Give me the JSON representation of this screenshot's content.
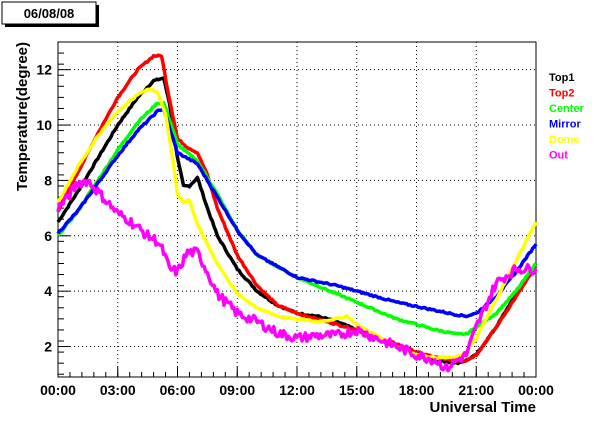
{
  "chart_data": {
    "type": "line",
    "title": "06/08/08",
    "xlabel": "Universal Time",
    "ylabel": "Temperature(degree)",
    "xlim": [
      0,
      24
    ],
    "ylim": [
      0.9,
      13.0
    ],
    "grid": true,
    "legend_position": "right",
    "x_ticks": [
      {
        "value": 0,
        "label": "00:00"
      },
      {
        "value": 3,
        "label": "03:00"
      },
      {
        "value": 6,
        "label": "06:00"
      },
      {
        "value": 9,
        "label": "09:00"
      },
      {
        "value": 12,
        "label": "12:00"
      },
      {
        "value": 15,
        "label": "15:00"
      },
      {
        "value": 18,
        "label": "18:00"
      },
      {
        "value": 21,
        "label": "21:00"
      },
      {
        "value": 24,
        "label": "00:00"
      }
    ],
    "y_ticks": [
      {
        "value": 2,
        "label": "2"
      },
      {
        "value": 4,
        "label": "4"
      },
      {
        "value": 6,
        "label": "6"
      },
      {
        "value": 8,
        "label": "8"
      },
      {
        "value": 10,
        "label": "10"
      },
      {
        "value": 12,
        "label": "12"
      }
    ],
    "series": [
      {
        "name": "Top1",
        "color": "#000000",
        "x": [
          0,
          1,
          2,
          3,
          4,
          4.8,
          5.3,
          5.6,
          6.0,
          6.3,
          6.6,
          7.0,
          7.5,
          8,
          9,
          10,
          11,
          12,
          13,
          14,
          15,
          16,
          17,
          18,
          19,
          20,
          20.5,
          21,
          22,
          23,
          24
        ],
        "y": [
          6.5,
          7.6,
          8.8,
          10.0,
          11.0,
          11.6,
          11.7,
          10.8,
          8.8,
          7.8,
          7.8,
          8.1,
          7.0,
          6.0,
          4.8,
          4.0,
          3.5,
          3.2,
          3.1,
          2.9,
          2.6,
          2.3,
          2.0,
          1.7,
          1.5,
          1.4,
          1.5,
          1.7,
          2.7,
          3.9,
          5.0
        ]
      },
      {
        "name": "Top2",
        "color": "#ff0000",
        "x": [
          0,
          1,
          2,
          3,
          4,
          4.8,
          5.2,
          5.5,
          6.0,
          6.5,
          7.0,
          7.5,
          8,
          9,
          10,
          11,
          12,
          13,
          14,
          15,
          16,
          17,
          18,
          19,
          20,
          20.5,
          21,
          22,
          23,
          24
        ],
        "y": [
          6.9,
          8.3,
          9.7,
          11.0,
          12.0,
          12.5,
          12.5,
          11.3,
          9.5,
          9.2,
          9.0,
          8.2,
          7.0,
          5.3,
          4.2,
          3.5,
          3.2,
          3.0,
          2.8,
          2.6,
          2.3,
          2.1,
          1.8,
          1.6,
          1.5,
          1.5,
          1.7,
          2.7,
          3.8,
          4.9
        ]
      },
      {
        "name": "Center",
        "color": "#00ff00",
        "x": [
          0,
          1,
          2,
          3,
          4,
          5.0,
          5.3,
          5.6,
          6.0,
          7,
          8,
          9,
          10,
          11,
          12,
          13,
          14,
          15,
          16,
          17,
          18,
          19,
          20,
          20.5,
          21,
          22,
          23,
          24
        ],
        "y": [
          6.0,
          6.9,
          8.0,
          9.1,
          10.1,
          10.8,
          10.8,
          10.2,
          9.3,
          8.7,
          7.5,
          6.2,
          5.3,
          4.9,
          4.5,
          4.2,
          3.9,
          3.6,
          3.3,
          3.0,
          2.8,
          2.6,
          2.45,
          2.45,
          2.7,
          3.2,
          4.0,
          5.0
        ]
      },
      {
        "name": "Mirror",
        "color": "#0000ff",
        "x": [
          0,
          1,
          2,
          3,
          4,
          5.0,
          5.3,
          5.6,
          6.0,
          7,
          8,
          9,
          10,
          11,
          12,
          13,
          14,
          15,
          16,
          17,
          18,
          19,
          20,
          20.5,
          21,
          22,
          23,
          24
        ],
        "y": [
          6.1,
          6.9,
          7.9,
          8.9,
          9.8,
          10.5,
          10.6,
          9.9,
          9.0,
          8.6,
          7.4,
          6.2,
          5.3,
          4.9,
          4.5,
          4.35,
          4.2,
          4.0,
          3.8,
          3.6,
          3.45,
          3.3,
          3.15,
          3.1,
          3.2,
          3.8,
          4.7,
          5.7
        ]
      },
      {
        "name": "Dome",
        "color": "#ffff00",
        "x": [
          0,
          1,
          2,
          3,
          4,
          4.5,
          5.0,
          5.4,
          5.8,
          6.0,
          6.3,
          6.6,
          7.0,
          8,
          9,
          10,
          11,
          12,
          13,
          14,
          14.5,
          15,
          16,
          17,
          18,
          19,
          20,
          20.5,
          21,
          22,
          23,
          24
        ],
        "y": [
          7.2,
          8.5,
          9.6,
          10.5,
          11.1,
          11.3,
          11.2,
          10.4,
          8.6,
          7.5,
          7.2,
          7.3,
          6.4,
          5.0,
          3.9,
          3.4,
          3.1,
          3.0,
          2.9,
          3.0,
          3.1,
          2.8,
          2.4,
          2.0,
          1.7,
          1.6,
          1.6,
          1.8,
          2.3,
          3.7,
          5.1,
          6.5
        ]
      },
      {
        "name": "Out",
        "color": "#ff00ff",
        "x": [
          0,
          0.5,
          1.0,
          1.5,
          2.0,
          2.5,
          3.0,
          3.5,
          4.0,
          4.5,
          5.0,
          5.3,
          5.6,
          6.0,
          6.5,
          7.0,
          7.5,
          8,
          9,
          10,
          11,
          12,
          13,
          14,
          15,
          16,
          17,
          18,
          19,
          19.5,
          20,
          20.5,
          21,
          22,
          23,
          24
        ],
        "y": [
          7.0,
          7.4,
          7.9,
          8.0,
          7.6,
          7.2,
          6.8,
          6.6,
          6.3,
          6.0,
          5.8,
          5.4,
          4.8,
          4.7,
          5.4,
          5.4,
          4.7,
          3.9,
          3.2,
          2.9,
          2.5,
          2.3,
          2.4,
          2.4,
          2.6,
          2.3,
          2.0,
          1.7,
          1.5,
          1.2,
          1.5,
          1.7,
          2.7,
          4.3,
          4.8,
          4.8
        ]
      }
    ]
  }
}
